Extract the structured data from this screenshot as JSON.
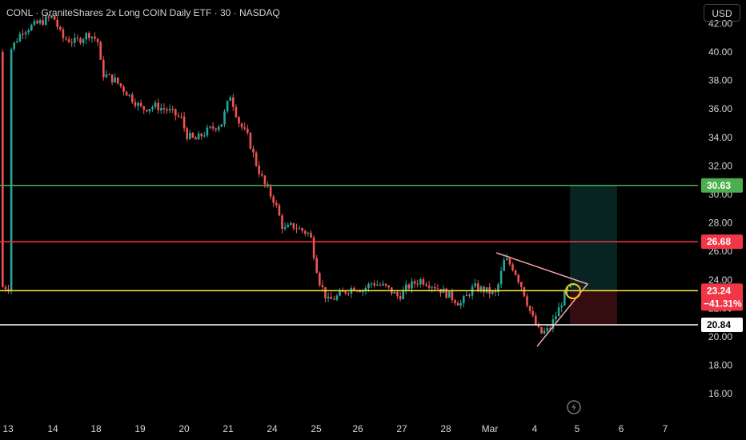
{
  "header": {
    "symbol_title": "CONL · GraniteShares 2x Long COIN Daily ETF · 30 · NASDAQ",
    "currency_button": "USD"
  },
  "colors": {
    "background": "#000000",
    "up": "#26a69a",
    "down": "#ef5350",
    "target_line": "#4caf50",
    "resistance_line": "#f23645",
    "entry_line": "#ffeb3b",
    "support_line": "#ffffff",
    "triangle": "#f7a4a4",
    "circle": "#f5c518"
  },
  "levels": {
    "target": {
      "value": 30.63,
      "label": "30.63"
    },
    "resistance": {
      "value": 26.68,
      "label": "26.68"
    },
    "entry": {
      "value": 23.24,
      "label": "23.24",
      "change": "−41.31%"
    },
    "support": {
      "value": 20.84,
      "label": "20.84"
    }
  },
  "chart_data": {
    "type": "candlestick",
    "title": "CONL · GraniteShares 2x Long COIN Daily ETF · 30 · NASDAQ",
    "y_ticks": [
      "16.00",
      "18.00",
      "20.00",
      "22.00",
      "24.00",
      "26.00",
      "28.00",
      "30.00",
      "32.00",
      "34.00",
      "36.00",
      "38.00",
      "40.00",
      "42.00"
    ],
    "ylim": [
      15,
      42.5
    ],
    "x_ticks": [
      "13",
      "14",
      "18",
      "19",
      "20",
      "21",
      "24",
      "25",
      "26",
      "27",
      "28",
      "Mar",
      "4",
      "5",
      "6",
      "7"
    ],
    "price_path": [
      [
        0,
        40
      ],
      [
        0.3,
        41.5
      ],
      [
        1,
        42.5
      ],
      [
        1.2,
        41
      ],
      [
        1.5,
        40.7
      ],
      [
        1.8,
        41.3
      ],
      [
        2,
        40.8
      ],
      [
        2.1,
        38.5
      ],
      [
        2.4,
        38
      ],
      [
        2.7,
        37
      ],
      [
        3,
        36
      ],
      [
        3.3,
        36.2
      ],
      [
        3.6,
        35.9
      ],
      [
        3.9,
        35.3
      ],
      [
        4,
        34.2
      ],
      [
        4.2,
        33.8
      ],
      [
        4.5,
        34.5
      ],
      [
        4.8,
        35
      ],
      [
        5,
        37
      ],
      [
        5.2,
        35
      ],
      [
        5.4,
        34
      ],
      [
        5.6,
        32
      ],
      [
        5.8,
        30.5
      ],
      [
        6,
        29.5
      ],
      [
        6.2,
        27.5
      ],
      [
        6.4,
        27.8
      ],
      [
        6.6,
        27.5
      ],
      [
        6.8,
        27.2
      ],
      [
        7,
        24
      ],
      [
        7.2,
        22.5
      ],
      [
        7.4,
        22.8
      ],
      [
        7.6,
        23.2
      ],
      [
        7.8,
        23.5
      ],
      [
        8,
        23.3
      ],
      [
        8.2,
        23.8
      ],
      [
        8.5,
        23.5
      ],
      [
        8.8,
        22.8
      ],
      [
        9,
        23.5
      ],
      [
        9.3,
        24
      ],
      [
        9.6,
        23.6
      ],
      [
        9.9,
        23
      ],
      [
        10.2,
        22.3
      ],
      [
        10.5,
        23.5
      ],
      [
        10.8,
        23.2
      ],
      [
        11,
        23
      ],
      [
        11.2,
        25.5
      ],
      [
        11.4,
        24.8
      ],
      [
        11.6,
        23.4
      ],
      [
        11.8,
        21.5
      ],
      [
        12,
        20.2
      ],
      [
        12.2,
        20.5
      ],
      [
        12.4,
        21.8
      ],
      [
        12.6,
        23.3
      ],
      [
        12.75,
        23.5
      ]
    ]
  }
}
